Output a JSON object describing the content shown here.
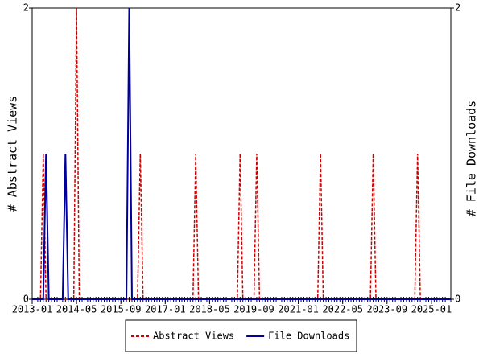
{
  "chart_data": {
    "type": "line",
    "y_label": "# Abstract Views",
    "y2_label": "# File Downloads",
    "x": [
      "2013-01",
      "2013-02",
      "2013-03",
      "2013-04",
      "2013-05",
      "2013-06",
      "2013-07",
      "2013-08",
      "2013-09",
      "2013-10",
      "2013-11",
      "2013-12",
      "2014-01",
      "2014-02",
      "2014-03",
      "2014-04",
      "2014-05",
      "2014-06",
      "2014-07",
      "2014-08",
      "2014-09",
      "2014-10",
      "2014-11",
      "2014-12",
      "2015-01",
      "2015-02",
      "2015-03",
      "2015-04",
      "2015-05",
      "2015-06",
      "2015-07",
      "2015-08",
      "2015-09",
      "2015-10",
      "2015-11",
      "2015-12",
      "2016-01",
      "2016-02",
      "2016-03",
      "2016-04",
      "2016-05",
      "2016-06",
      "2016-07",
      "2016-08",
      "2016-09",
      "2016-10",
      "2016-11",
      "2016-12",
      "2017-01",
      "2017-02",
      "2017-03",
      "2017-04",
      "2017-05",
      "2017-06",
      "2017-07",
      "2017-08",
      "2017-09",
      "2017-10",
      "2017-11",
      "2017-12",
      "2018-01",
      "2018-02",
      "2018-03",
      "2018-04",
      "2018-05",
      "2018-06",
      "2018-07",
      "2018-08",
      "2018-09",
      "2018-10",
      "2018-11",
      "2018-12",
      "2019-01",
      "2019-02",
      "2019-03",
      "2019-04",
      "2019-05",
      "2019-06",
      "2019-07",
      "2019-08",
      "2019-09",
      "2019-10",
      "2019-11",
      "2019-12",
      "2020-01",
      "2020-02",
      "2020-03",
      "2020-04",
      "2020-05",
      "2020-06",
      "2020-07",
      "2020-08",
      "2020-09",
      "2020-10",
      "2020-11",
      "2020-12",
      "2021-01",
      "2021-02",
      "2021-03",
      "2021-04",
      "2021-05",
      "2021-06",
      "2021-07",
      "2021-08",
      "2021-09",
      "2021-10",
      "2021-11",
      "2021-12",
      "2022-01",
      "2022-02",
      "2022-03",
      "2022-04",
      "2022-05",
      "2022-06",
      "2022-07",
      "2022-08",
      "2022-09",
      "2022-10",
      "2022-11",
      "2022-12",
      "2023-01",
      "2023-02",
      "2023-03",
      "2023-04",
      "2023-05",
      "2023-06",
      "2023-07",
      "2023-08",
      "2023-09",
      "2023-10",
      "2023-11",
      "2023-12",
      "2024-01",
      "2024-02",
      "2024-03",
      "2024-04",
      "2024-05",
      "2024-06",
      "2024-07",
      "2024-08",
      "2024-09",
      "2024-10",
      "2024-11",
      "2024-12",
      "2025-01",
      "2025-02",
      "2025-03",
      "2025-04",
      "2025-05",
      "2025-06",
      "2025-07",
      "2025-08"
    ],
    "series": [
      {
        "name": "Abstract Views",
        "color": "#cc0000",
        "dashed": true,
        "axis": "y",
        "values": [
          0,
          0,
          0,
          0,
          1,
          0,
          0,
          0,
          0,
          0,
          0,
          0,
          0,
          0,
          0,
          0,
          2,
          0,
          0,
          0,
          0,
          0,
          0,
          0,
          0,
          0,
          0,
          0,
          0,
          0,
          0,
          0,
          0,
          0,
          0,
          0,
          0,
          0,
          0,
          1,
          0,
          0,
          0,
          0,
          0,
          0,
          0,
          0,
          0,
          0,
          0,
          0,
          0,
          0,
          0,
          0,
          0,
          0,
          0,
          1,
          0,
          0,
          0,
          0,
          0,
          0,
          0,
          0,
          0,
          0,
          0,
          0,
          0,
          0,
          0,
          1,
          0,
          0,
          0,
          0,
          0,
          1,
          0,
          0,
          0,
          0,
          0,
          0,
          0,
          0,
          0,
          0,
          0,
          0,
          0,
          0,
          0,
          0,
          0,
          0,
          0,
          0,
          0,
          0,
          1,
          0,
          0,
          0,
          0,
          0,
          0,
          0,
          0,
          0,
          0,
          0,
          0,
          0,
          0,
          0,
          0,
          0,
          0,
          1,
          0,
          0,
          0,
          0,
          0,
          0,
          0,
          0,
          0,
          0,
          0,
          0,
          0,
          0,
          0,
          1,
          0,
          0,
          0,
          0,
          0,
          0,
          0,
          0,
          0,
          0,
          0,
          0
        ]
      },
      {
        "name": "File Downloads",
        "color": "#000099",
        "dashed": false,
        "axis": "y2",
        "values": [
          0,
          0,
          0,
          0,
          0,
          1,
          0,
          0,
          0,
          0,
          0,
          0,
          1,
          0,
          0,
          0,
          0,
          0,
          0,
          0,
          0,
          0,
          0,
          0,
          0,
          0,
          0,
          0,
          0,
          0,
          0,
          0,
          0,
          0,
          0,
          2,
          0,
          0,
          0,
          0,
          0,
          0,
          0,
          0,
          0,
          0,
          0,
          0,
          0,
          0,
          0,
          0,
          0,
          0,
          0,
          0,
          0,
          0,
          0,
          0,
          0,
          0,
          0,
          0,
          0,
          0,
          0,
          0,
          0,
          0,
          0,
          0,
          0,
          0,
          0,
          0,
          0,
          0,
          0,
          0,
          0,
          0,
          0,
          0,
          0,
          0,
          0,
          0,
          0,
          0,
          0,
          0,
          0,
          0,
          0,
          0,
          0,
          0,
          0,
          0,
          0,
          0,
          0,
          0,
          0,
          0,
          0,
          0,
          0,
          0,
          0,
          0,
          0,
          0,
          0,
          0,
          0,
          0,
          0,
          0,
          0,
          0,
          0,
          0,
          0,
          0,
          0,
          0,
          0,
          0,
          0,
          0,
          0,
          0,
          0,
          0,
          0,
          0,
          0,
          0,
          0,
          0,
          0,
          0,
          0,
          0,
          0,
          0,
          0,
          0,
          0,
          0
        ]
      }
    ],
    "xlim": [
      "2013-01",
      "2025-08"
    ],
    "xticks": [
      "2013-01",
      "2014-05",
      "2015-09",
      "2017-01",
      "2018-05",
      "2019-09",
      "2021-01",
      "2022-05",
      "2023-09",
      "2025-01"
    ],
    "ylim": [
      0,
      2
    ],
    "yticks": [
      0,
      2
    ],
    "y2lim": [
      0,
      2
    ],
    "y2ticks": [
      0,
      2
    ],
    "grid": false
  }
}
